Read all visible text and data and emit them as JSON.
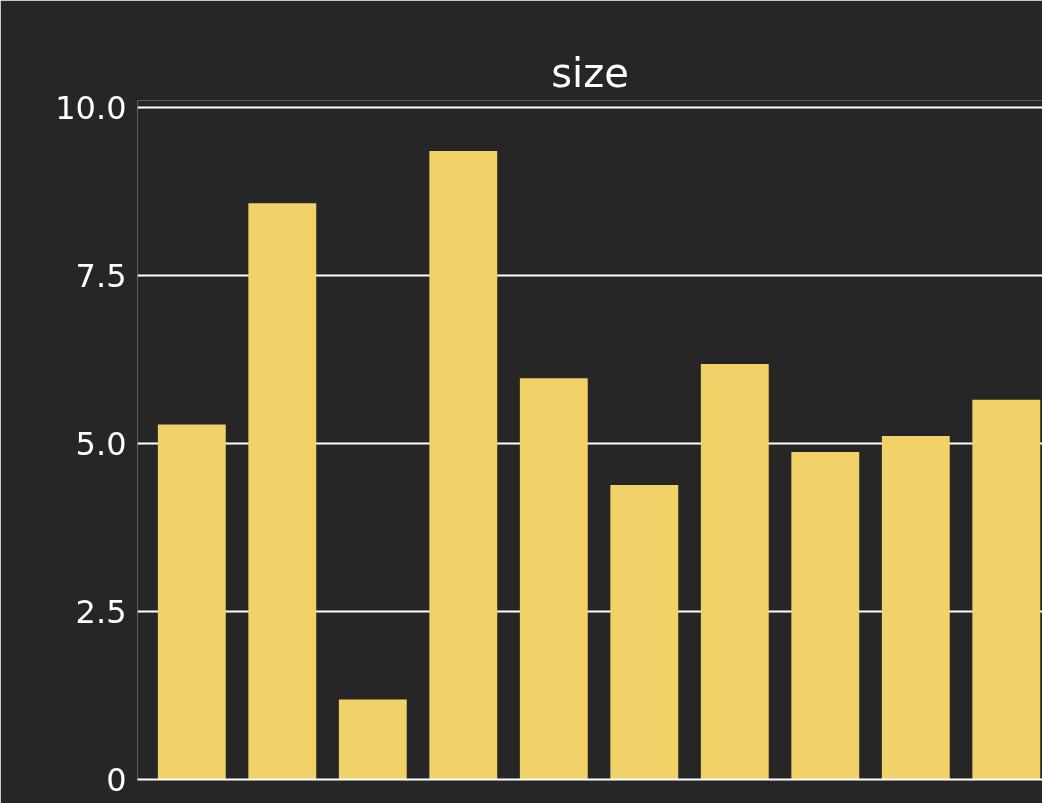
{
  "chart_data": {
    "type": "bar",
    "title": "size",
    "categories": [
      null,
      null,
      null,
      null,
      null,
      null,
      null,
      null,
      null,
      null
    ],
    "values": [
      5.28,
      8.57,
      1.19,
      9.35,
      5.97,
      4.38,
      6.18,
      4.87,
      5.11,
      5.65
    ],
    "color": "#f0d269",
    "ylim": [
      0,
      10.1
    ],
    "yticks": [
      0,
      2.5,
      {
        "value": 5,
        "label": "5.0"
      },
      7.5,
      {
        "value": 10,
        "label": "10.0"
      }
    ],
    "grid": "y",
    "tick_labels": "y"
  }
}
